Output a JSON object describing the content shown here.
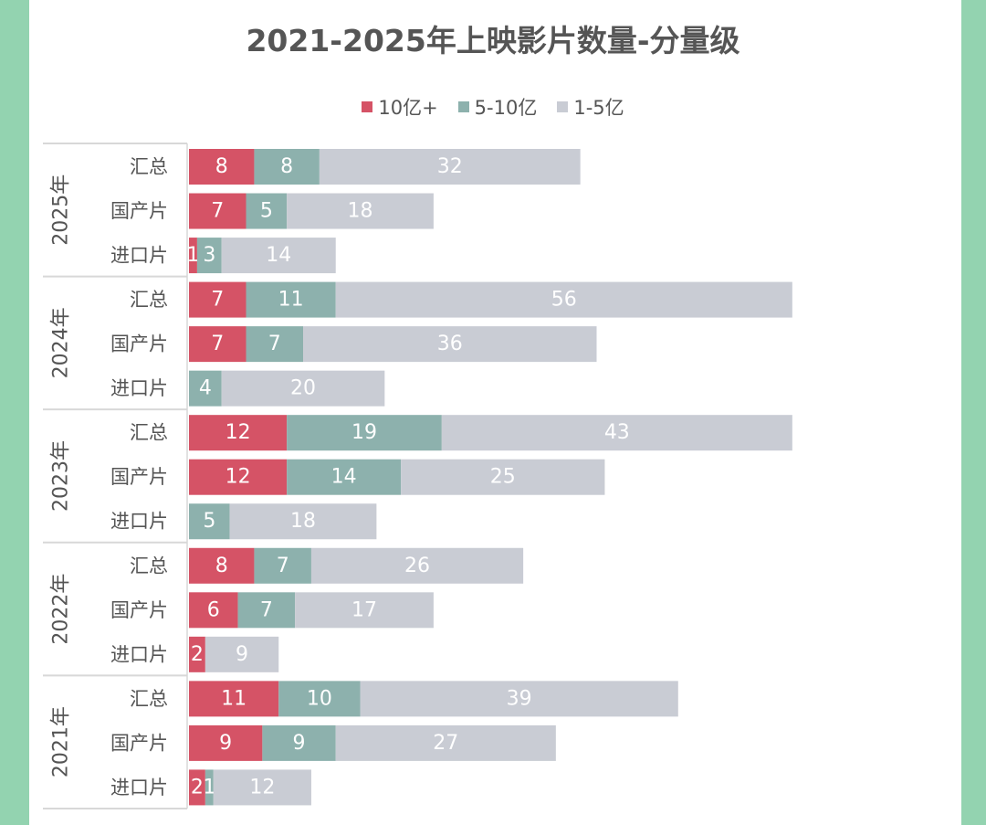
{
  "colors": {
    "strip": "#93d3b0",
    "series": [
      "#d55366",
      "#8db1ad",
      "#c9ccd4"
    ],
    "label_text": "#555555",
    "value_text": "#ffffff",
    "grid_line": "#d8d8d8"
  },
  "chart_data": {
    "type": "bar",
    "orientation": "horizontal",
    "stacked": true,
    "title": "2021-2025年上映影片数量-分量级",
    "legend": {
      "position": "top",
      "entries": [
        "10亿+",
        "5-10亿",
        "1-5亿"
      ]
    },
    "series_names": [
      "10亿+",
      "5-10亿",
      "1-5亿"
    ],
    "groups": [
      {
        "year": "2025年",
        "rows": [
          {
            "category": "汇总",
            "values": [
              8,
              8,
              32
            ],
            "labels": [
              "8",
              "8",
              "32"
            ]
          },
          {
            "category": "国产片",
            "values": [
              7,
              5,
              18
            ],
            "labels": [
              "7",
              "5",
              "18"
            ]
          },
          {
            "category": "进口片",
            "values": [
              1,
              3,
              14
            ],
            "labels": [
              "1",
              "3",
              "14"
            ]
          }
        ]
      },
      {
        "year": "2024年",
        "rows": [
          {
            "category": "汇总",
            "values": [
              7,
              11,
              56
            ],
            "labels": [
              "7",
              "11",
              "56"
            ]
          },
          {
            "category": "国产片",
            "values": [
              7,
              7,
              36
            ],
            "labels": [
              "7",
              "7",
              "36"
            ]
          },
          {
            "category": "进口片",
            "values": [
              0,
              4,
              20
            ],
            "labels": [
              "",
              "4",
              "20"
            ]
          }
        ]
      },
      {
        "year": "2023年",
        "rows": [
          {
            "category": "汇总",
            "values": [
              12,
              19,
              43
            ],
            "labels": [
              "12",
              "19",
              "43"
            ]
          },
          {
            "category": "国产片",
            "values": [
              12,
              14,
              25
            ],
            "labels": [
              "12",
              "14",
              "25"
            ]
          },
          {
            "category": "进口片",
            "values": [
              0,
              5,
              18
            ],
            "labels": [
              "",
              "5",
              "18"
            ]
          }
        ]
      },
      {
        "year": "2022年",
        "rows": [
          {
            "category": "汇总",
            "values": [
              8,
              7,
              26
            ],
            "labels": [
              "8",
              "7",
              "26"
            ]
          },
          {
            "category": "国产片",
            "values": [
              6,
              7,
              17
            ],
            "labels": [
              "6",
              "7",
              "17"
            ]
          },
          {
            "category": "进口片",
            "values": [
              2,
              0,
              9
            ],
            "labels": [
              "2",
              "",
              "9"
            ]
          }
        ]
      },
      {
        "year": "2021年",
        "rows": [
          {
            "category": "汇总",
            "values": [
              11,
              10,
              39
            ],
            "labels": [
              "11",
              "10",
              "39"
            ]
          },
          {
            "category": "国产片",
            "values": [
              9,
              9,
              27
            ],
            "labels": [
              "9",
              "9",
              "27"
            ]
          },
          {
            "category": "进口片",
            "values": [
              2,
              1,
              12
            ],
            "labels": [
              "2",
              "1",
              "12"
            ]
          }
        ]
      }
    ],
    "xlim": [
      0,
      94
    ],
    "grid": false
  }
}
